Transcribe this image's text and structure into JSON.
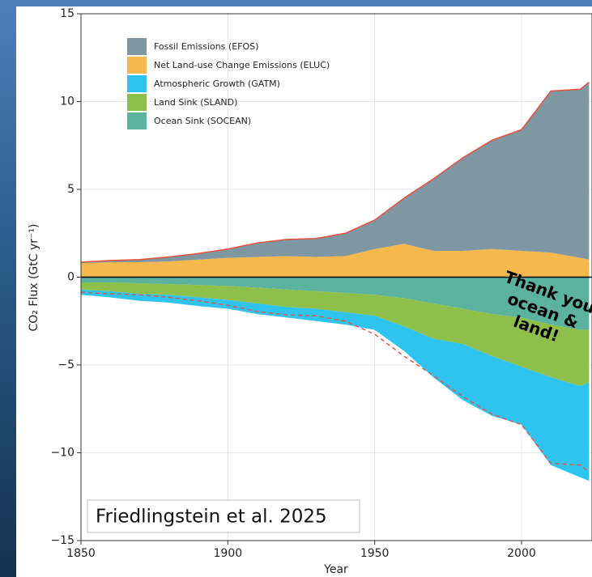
{
  "chart_data": {
    "type": "area",
    "x": [
      1850,
      1860,
      1870,
      1880,
      1890,
      1900,
      1910,
      1920,
      1930,
      1940,
      1950,
      1960,
      1970,
      1980,
      1990,
      2000,
      2010,
      2020,
      2023
    ],
    "series": [
      {
        "name": "Fossil Emissions (EFOS)",
        "color": "#7f96a3",
        "values": [
          0.05,
          0.1,
          0.15,
          0.25,
          0.35,
          0.5,
          0.8,
          0.95,
          1.05,
          1.3,
          1.65,
          2.6,
          4.1,
          5.3,
          6.2,
          6.9,
          9.2,
          9.6,
          10.1
        ]
      },
      {
        "name": "Net Land-use Change Emissions (ELUC)",
        "color": "#f4b84c",
        "values": [
          0.8,
          0.85,
          0.85,
          0.9,
          1.0,
          1.1,
          1.15,
          1.2,
          1.15,
          1.2,
          1.6,
          1.9,
          1.5,
          1.5,
          1.6,
          1.5,
          1.4,
          1.1,
          1.0
        ]
      },
      {
        "name": "Atmospheric Growth (GATM)",
        "color": "#2fc3f0",
        "values": [
          -0.3,
          -0.35,
          -0.4,
          -0.45,
          -0.5,
          -0.5,
          -0.6,
          -0.6,
          -0.7,
          -0.7,
          -0.8,
          -1.4,
          -2.2,
          -3.2,
          -3.4,
          -3.3,
          -5.0,
          -5.2,
          -5.6
        ]
      },
      {
        "name": "Land Sink (SLAND)",
        "color": "#8fbf4b",
        "values": [
          -0.4,
          -0.5,
          -0.6,
          -0.6,
          -0.7,
          -0.8,
          -0.9,
          -1.0,
          -1.0,
          -1.1,
          -1.2,
          -1.6,
          -2.0,
          -2.0,
          -2.4,
          -2.8,
          -3.0,
          -3.2,
          -3.0
        ]
      },
      {
        "name": "Ocean Sink (SOCEAN)",
        "color": "#5bb39f",
        "values": [
          -0.3,
          -0.3,
          -0.35,
          -0.4,
          -0.45,
          -0.5,
          -0.6,
          -0.7,
          -0.8,
          -0.9,
          -1.0,
          -1.2,
          -1.5,
          -1.8,
          -2.1,
          -2.3,
          -2.7,
          -3.0,
          -3.0
        ]
      }
    ],
    "lines": [
      {
        "color": "#e8503a",
        "dash": true,
        "values": [
          -0.85,
          -0.95,
          -1.0,
          -1.15,
          -1.35,
          -1.6,
          -1.95,
          -2.15,
          -2.2,
          -2.5,
          -3.25,
          -4.5,
          -5.6,
          -6.8,
          -7.8,
          -8.4,
          -10.6,
          -10.7,
          -11.1
        ]
      }
    ],
    "outline_color": "#e8503a",
    "xlim": [
      1850,
      2024
    ],
    "xticks": [
      1850,
      1900,
      1950,
      2000
    ],
    "ylim": [
      -15,
      15
    ],
    "yticks": [
      {
        "value": -15,
        "label": "−15"
      },
      {
        "value": -10,
        "label": "−10"
      },
      {
        "value": -5,
        "label": "−5"
      },
      0,
      5,
      10,
      15
    ],
    "grid": true,
    "xlabel": "Year",
    "ylabel": "CO₂ Flux (GtC yr⁻¹)",
    "annotations": [
      "Friedlingstein et al. 2025"
    ],
    "callout": [
      "Thank you",
      "ocean &",
      "land!"
    ]
  }
}
